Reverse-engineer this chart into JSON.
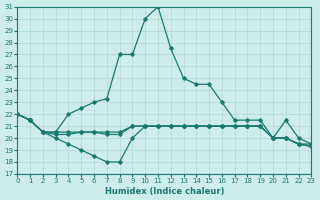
{
  "background_color": "#ceecea",
  "grid_color": "#b0d8d4",
  "line_color": "#1a7a6e",
  "xlabel": "Humidex (Indice chaleur)",
  "xlim": [
    0,
    23
  ],
  "ylim": [
    17,
    31
  ],
  "xticks": [
    0,
    1,
    2,
    3,
    4,
    5,
    6,
    7,
    8,
    9,
    10,
    11,
    12,
    13,
    14,
    15,
    16,
    17,
    18,
    19,
    20,
    21,
    22,
    23
  ],
  "yticks": [
    17,
    18,
    19,
    20,
    21,
    22,
    23,
    24,
    25,
    26,
    27,
    28,
    29,
    30,
    31
  ],
  "series": [
    {
      "x": [
        0,
        1,
        2,
        3,
        4,
        5,
        6,
        7,
        8,
        9,
        10,
        11,
        12,
        13,
        14,
        15,
        16,
        17,
        18,
        19,
        20,
        21,
        22,
        23
      ],
      "y": [
        22,
        21.5,
        20.5,
        20.5,
        20.5,
        20.5,
        20.5,
        20.5,
        20.5,
        21,
        21,
        21,
        21,
        21,
        21,
        21,
        21,
        21,
        21,
        21,
        20,
        20,
        19.5,
        19.5
      ]
    },
    {
      "x": [
        0,
        1,
        2,
        3,
        4,
        5,
        6,
        7,
        8,
        9,
        10,
        11,
        12,
        13,
        14,
        15,
        16,
        17,
        18,
        19,
        20,
        21,
        22,
        23
      ],
      "y": [
        22,
        21.5,
        20.5,
        20.3,
        20.3,
        20.5,
        20.5,
        20.3,
        20.3,
        21,
        21,
        21,
        21,
        21,
        21,
        21,
        21,
        21,
        21,
        21,
        20,
        20,
        19.5,
        19.3
      ]
    },
    {
      "x": [
        0,
        1,
        2,
        3,
        4,
        5,
        6,
        7,
        8,
        9,
        10,
        11,
        12,
        13,
        14,
        15,
        16,
        17,
        18,
        19,
        20,
        21,
        22,
        23
      ],
      "y": [
        22,
        21.5,
        20.5,
        20,
        19.5,
        19,
        18.5,
        18,
        18,
        20,
        21,
        21,
        21,
        21,
        21,
        21,
        21,
        21,
        21,
        21,
        20,
        20,
        19.5,
        19.3
      ]
    },
    {
      "x": [
        0,
        1,
        2,
        3,
        4,
        5,
        6,
        7,
        8,
        9,
        10,
        11,
        12,
        13,
        14,
        15,
        16,
        17,
        18,
        19,
        20,
        21,
        22,
        23
      ],
      "y": [
        22,
        21.5,
        20.5,
        20.5,
        22,
        22.5,
        23,
        23.3,
        27,
        27,
        30,
        31,
        27.5,
        25,
        24.5,
        24.5,
        23,
        21.5,
        21.5,
        21.5,
        20,
        21.5,
        20,
        19.5
      ]
    }
  ]
}
